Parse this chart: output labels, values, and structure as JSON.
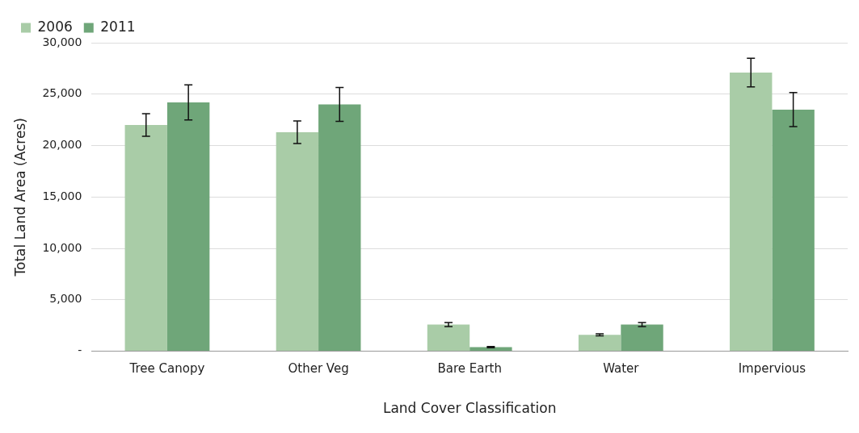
{
  "chart_data": {
    "type": "bar",
    "xlabel": "Land Cover Classification",
    "ylabel": "Total Land Area (Acres)",
    "categories": [
      "Tree Canopy",
      "Other Veg",
      "Bare Earth",
      "Water",
      "Impervious"
    ],
    "series": [
      {
        "name": "2006",
        "color": "#a9cca7",
        "values": [
          22000,
          21300,
          2600,
          1600,
          27100
        ],
        "errors": [
          1100,
          1100,
          200,
          100,
          1400
        ]
      },
      {
        "name": "2011",
        "color": "#6fa679",
        "values": [
          24200,
          24000,
          400,
          2600,
          23500
        ],
        "errors": [
          1700,
          1650,
          50,
          200,
          1650
        ]
      }
    ],
    "ylim": [
      0,
      30000
    ],
    "yticks": [
      {
        "value": 0,
        "label": "-"
      },
      {
        "value": 5000,
        "label": "5,000"
      },
      {
        "value": 10000,
        "label": "10,000"
      },
      {
        "value": 15000,
        "label": "15,000"
      },
      {
        "value": 20000,
        "label": "20,000"
      },
      {
        "value": 25000,
        "label": "25,000"
      },
      {
        "value": 30000,
        "label": "30,000"
      }
    ],
    "grid": "y",
    "legend": "top left"
  }
}
